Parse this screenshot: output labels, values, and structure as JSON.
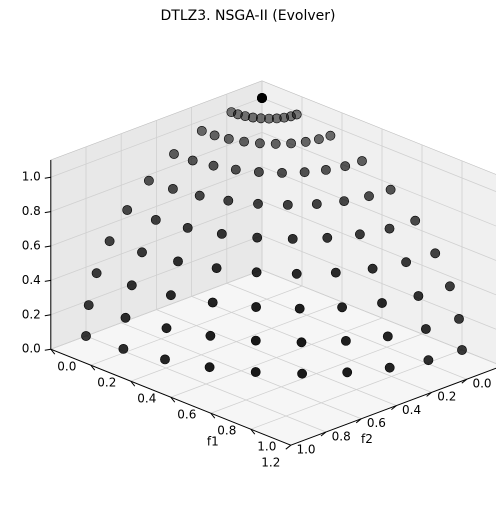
{
  "chart_data": {
    "type": "scatter",
    "title": "DTLZ3. NSGA-II (Evolver)",
    "projection": "3d",
    "view": {
      "elev": 20,
      "azim": 45
    },
    "xlabel": "f1",
    "ylabel": "f2",
    "zlabel": "",
    "xlim": [
      0,
      1.2
    ],
    "ylim": [
      0,
      1.2
    ],
    "zlim": [
      0,
      1.1
    ],
    "x_ticks": [
      "0.0",
      "0.2",
      "0.4",
      "0.6",
      "0.8",
      "1.0"
    ],
    "y_ticks": [
      "0.0",
      "0.2",
      "0.4",
      "0.6",
      "0.8",
      "1.0",
      "1.2"
    ],
    "z_ticks": [
      "0.0",
      "0.2",
      "0.4",
      "0.6",
      "0.8",
      "1.0"
    ],
    "grid": true,
    "marker_color": "#000000",
    "series": [
      {
        "points_fn": "spherical front, 10 x 10 grid of angles on the unit sphere (f1^2 + f2^2 + f3^2 = 1)"
      }
    ]
  },
  "colors": {
    "pane": "#f2f2f2",
    "grid": "#d0d0d0",
    "marker": "#000000"
  }
}
